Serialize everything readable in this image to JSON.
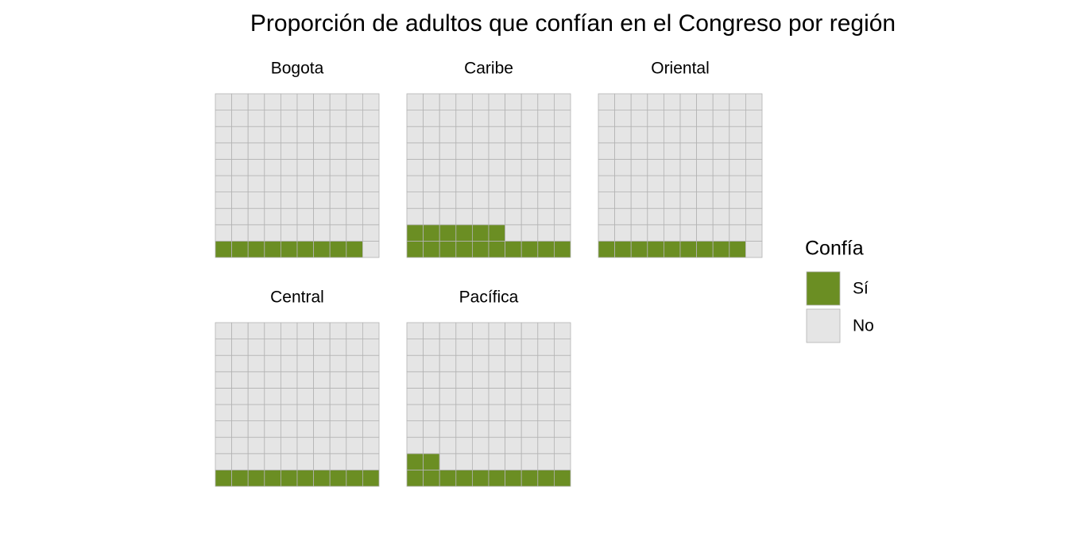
{
  "chart_data": {
    "type": "waffle",
    "title": "Proporción de adultos que confían en el Congreso por región",
    "categories": [
      "Bogota",
      "Caribe",
      "Oriental",
      "Central",
      "Pacífica"
    ],
    "series": [
      {
        "name": "Sí",
        "color": "#6b8e23",
        "values": [
          9,
          16,
          9,
          10,
          12
        ]
      },
      {
        "name": "No",
        "color": "#e5e5e5",
        "values": [
          91,
          84,
          91,
          90,
          88
        ]
      }
    ],
    "legend_title": "Confía",
    "legend": "right"
  }
}
